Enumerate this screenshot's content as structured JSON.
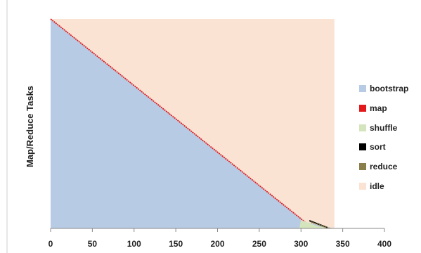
{
  "chart_data": {
    "type": "area",
    "title": "",
    "xlabel": "",
    "ylabel": "Map/Reduce Tasks",
    "xlim": [
      0,
      400
    ],
    "x_ticks": [
      0,
      50,
      100,
      150,
      200,
      250,
      300,
      350,
      400
    ],
    "grid": false,
    "legend_position": "right",
    "x_end_of_tasks": 340,
    "series": [
      {
        "name": "bootstrap",
        "color": "#b7cce4",
        "description_points": [
          [
            0,
            1.0
          ],
          [
            305,
            0.03
          ],
          [
            340,
            0
          ]
        ]
      },
      {
        "name": "map",
        "color": "#e31a1c"
      },
      {
        "name": "shuffle",
        "color": "#d4e4bc"
      },
      {
        "name": "sort",
        "color": "#000000"
      },
      {
        "name": "reduce",
        "color": "#8a7f4a"
      },
      {
        "name": "idle",
        "color": "#fbe3d4"
      }
    ],
    "diagonal": {
      "x_start": 0,
      "x_end": 305
    },
    "bottom_activity_x": [
      300,
      340
    ]
  }
}
